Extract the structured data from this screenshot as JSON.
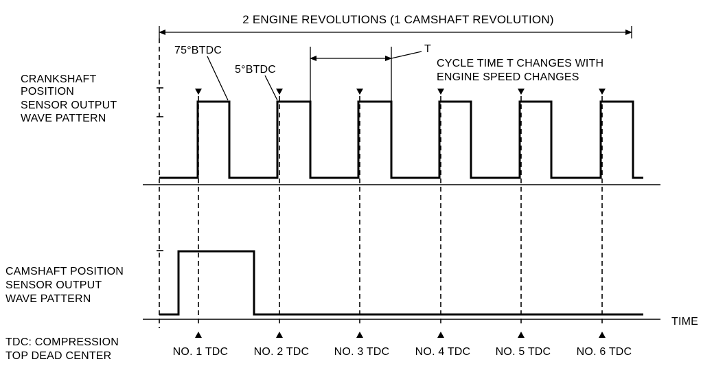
{
  "title": "2 ENGINE REVOLUTIONS (1 CAMSHAFT REVOLUTION)",
  "crank_label": [
    "CRANKSHAFT",
    "POSITION",
    "SENSOR OUTPUT",
    "WAVE PATTERN"
  ],
  "cam_label": [
    "CAMSHAFT POSITION",
    "SENSOR OUTPUT",
    "WAVE PATTERN"
  ],
  "tdc_note": [
    "TDC: COMPRESSION",
    "TOP DEAD CENTER"
  ],
  "annotations": {
    "btdc75": "75°BTDC",
    "btdc5": "5°BTDC",
    "t": "T",
    "cycle": [
      "CYCLE TIME T CHANGES WITH",
      "ENGINE SPEED CHANGES"
    ]
  },
  "time_label": "TIME",
  "tdc_labels": [
    "NO. 1 TDC",
    "NO. 2 TDC",
    "NO. 3 TDC",
    "NO. 4 TDC",
    "NO. 5 TDC",
    "NO. 6 TDC"
  ]
}
